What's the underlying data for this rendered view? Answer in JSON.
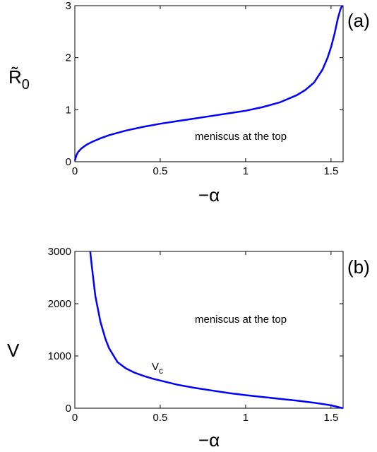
{
  "chart_data": [
    {
      "type": "line",
      "panel_label": "(a)",
      "xlabel": "−α",
      "ylabel": "R̃",
      "ylabel_sub": "0",
      "xlim": [
        0,
        1.5708
      ],
      "ylim": [
        0,
        3
      ],
      "xticks": [
        0,
        0.5,
        1,
        1.5
      ],
      "xtick_labels": [
        "0",
        "0.5",
        "1",
        "1.5"
      ],
      "yticks": [
        0,
        1,
        2,
        3
      ],
      "ytick_labels": [
        "0",
        "1",
        "2",
        "3"
      ],
      "annotation": "meniscus at the top",
      "line_color": "#0000ff",
      "series": [
        {
          "x": [
            0,
            0.01,
            0.02,
            0.04,
            0.07,
            0.1,
            0.15,
            0.2,
            0.3,
            0.4,
            0.5,
            0.6,
            0.7,
            0.8,
            0.9,
            1.0,
            1.1,
            1.2,
            1.3,
            1.35,
            1.4,
            1.45,
            1.48,
            1.5,
            1.52,
            1.54,
            1.555,
            1.565
          ],
          "y": [
            0.02,
            0.13,
            0.19,
            0.26,
            0.33,
            0.38,
            0.45,
            0.51,
            0.6,
            0.67,
            0.73,
            0.78,
            0.83,
            0.88,
            0.93,
            0.98,
            1.05,
            1.14,
            1.28,
            1.38,
            1.52,
            1.77,
            2.0,
            2.2,
            2.45,
            2.75,
            2.93,
            3.0
          ]
        }
      ]
    },
    {
      "type": "line",
      "panel_label": "(b)",
      "xlabel": "−α",
      "ylabel": "V",
      "xlim": [
        0,
        1.5708
      ],
      "ylim": [
        0,
        3000
      ],
      "xticks": [
        0,
        0.5,
        1,
        1.5
      ],
      "xtick_labels": [
        "0",
        "0.5",
        "1",
        "1.5"
      ],
      "yticks": [
        0,
        1000,
        2000,
        3000
      ],
      "ytick_labels": [
        "0",
        "1000",
        "2000",
        "3000"
      ],
      "annotation": "meniscus at the top",
      "point_label": "V",
      "point_label_sub": "c",
      "line_color": "#0000ff",
      "series": [
        {
          "x": [
            0.09,
            0.1,
            0.12,
            0.15,
            0.18,
            0.2,
            0.25,
            0.3,
            0.35,
            0.4,
            0.45,
            0.5,
            0.6,
            0.7,
            0.8,
            0.9,
            1.0,
            1.1,
            1.2,
            1.3,
            1.4,
            1.5,
            1.55,
            1.57
          ],
          "y": [
            3000,
            2700,
            2150,
            1650,
            1320,
            1150,
            880,
            760,
            680,
            620,
            570,
            530,
            450,
            390,
            340,
            290,
            250,
            215,
            180,
            145,
            105,
            55,
            15,
            0
          ]
        }
      ]
    }
  ]
}
